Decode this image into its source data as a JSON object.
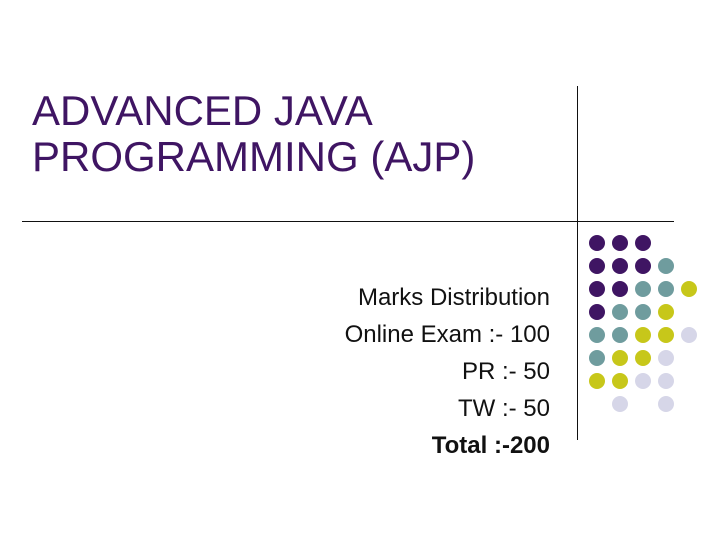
{
  "slide": {
    "title_lines": [
      "ADVANCED JAVA",
      "PROGRAMMING (AJP)"
    ],
    "body_lines": [
      "Marks Distribution",
      "Online Exam :- 100",
      "PR :- 50",
      "TW :- 50",
      "Total :-200"
    ]
  },
  "colors": {
    "title": "#3f1563",
    "text": "#111111",
    "dot_purple": "#3f1563",
    "dot_teal": "#6f9c9e",
    "dot_olive": "#c7c71a",
    "dot_lavender": "#d6d6e8"
  },
  "decoration": {
    "dot_grid": [
      [
        "purple",
        "purple",
        "purple",
        "",
        "",
        ""
      ],
      [
        "purple",
        "purple",
        "purple",
        "teal",
        "",
        ""
      ],
      [
        "purple",
        "purple",
        "teal",
        "teal",
        "olive",
        ""
      ],
      [
        "purple",
        "teal",
        "teal",
        "olive",
        "",
        ""
      ],
      [
        "teal",
        "teal",
        "olive",
        "olive",
        "lavender",
        ""
      ],
      [
        "teal",
        "olive",
        "olive",
        "lavender",
        "",
        ""
      ],
      [
        "olive",
        "olive",
        "lavender",
        "lavender",
        "",
        ""
      ],
      [
        "",
        "lavender",
        "",
        "lavender",
        "",
        ""
      ]
    ]
  }
}
